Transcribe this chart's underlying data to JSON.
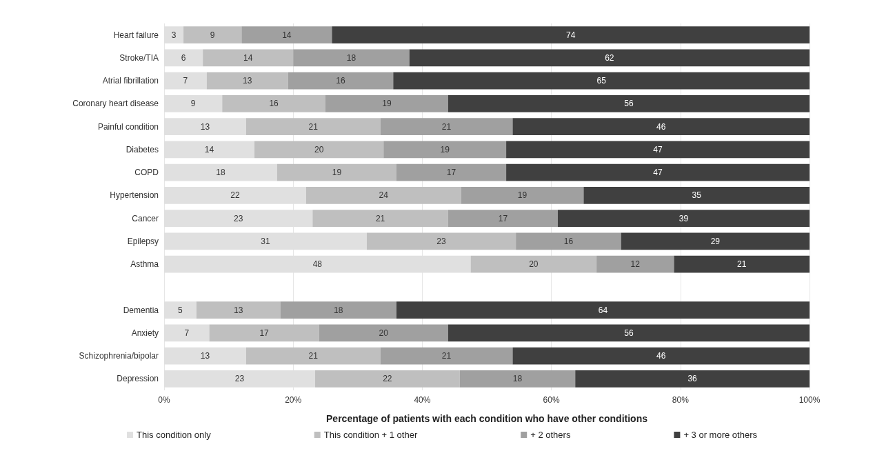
{
  "chart_data": {
    "type": "bar",
    "orientation": "horizontal",
    "stacked": true,
    "xlabel": "Percentage of patients with each condition who have other conditions",
    "categories": [
      "Heart failure",
      "Stroke/TIA",
      "Atrial fibrillation",
      "Coronary heart disease",
      "Painful condition",
      "Diabetes",
      "COPD",
      "Hypertension",
      "Cancer",
      "Epilepsy",
      "Asthma",
      null,
      "Dementia",
      "Anxiety",
      "Schizophrenia/bipolar",
      "Depression"
    ],
    "series": [
      {
        "name": "This condition only",
        "color": "#e0e0e0",
        "values": [
          3,
          6,
          6.6,
          9,
          12.7,
          14,
          17.5,
          22,
          23,
          31.4,
          47.5,
          null,
          5,
          7,
          12.7,
          23.4
        ],
        "value_labels": [
          "3",
          "6",
          "7",
          "9",
          "13",
          "14",
          "18",
          "22",
          "23",
          "31",
          "48",
          null,
          "5",
          "7",
          "13",
          "23"
        ]
      },
      {
        "name": "This condition + 1 other",
        "color": "#bfbfbf",
        "values": [
          9,
          14,
          12.6,
          16,
          20.8,
          20,
          18.5,
          24,
          21,
          23.1,
          19.5,
          null,
          13,
          17,
          20.8,
          22.4
        ],
        "value_labels": [
          "9",
          "14",
          "13",
          "16",
          "21",
          "20",
          "19",
          "24",
          "21",
          "23",
          "20",
          null,
          "13",
          "17",
          "21",
          "22"
        ]
      },
      {
        "name": "+ 2 others",
        "color": "#a0a0a0",
        "values": [
          14,
          18,
          16.3,
          19,
          20.5,
          19,
          17,
          19,
          17,
          16.3,
          12,
          null,
          18,
          20,
          20.5,
          17.9
        ],
        "value_labels": [
          "14",
          "18",
          "16",
          "19",
          "21",
          "19",
          "17",
          "19",
          "17",
          "16",
          "12",
          null,
          "18",
          "20",
          "21",
          "18"
        ]
      },
      {
        "name": "+ 3 or more others",
        "color": "#404040",
        "values": [
          74,
          62,
          64.5,
          56,
          46,
          47,
          47,
          35,
          39,
          29.2,
          21,
          null,
          64,
          56,
          46,
          36.3
        ],
        "value_labels": [
          "74",
          "62",
          "65",
          "56",
          "46",
          "47",
          "47",
          "35",
          "39",
          "29",
          "21",
          null,
          "64",
          "56",
          "46",
          "36"
        ]
      }
    ],
    "xlim": [
      0,
      100
    ],
    "xticks": [
      {
        "value": 0,
        "label": "0%"
      },
      {
        "value": 20,
        "label": "20%"
      },
      {
        "value": 40,
        "label": "40%"
      },
      {
        "value": 60,
        "label": "60%"
      },
      {
        "value": 80,
        "label": "80%"
      },
      {
        "value": 100,
        "label": "100%"
      }
    ],
    "grid": "x",
    "legend": "bottom"
  }
}
